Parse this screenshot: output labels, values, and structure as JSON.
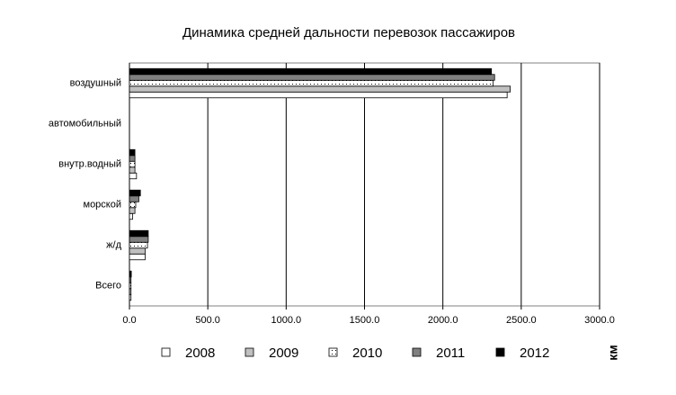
{
  "chart_data": {
    "type": "bar",
    "orientation": "horizontal",
    "title": "Динамика средней дальности перевозок пассажиров",
    "x_label": "км",
    "categories": [
      "воздушный",
      "автомобильный",
      "внутр.водный",
      "морской",
      "ж/д",
      "Всего"
    ],
    "series": [
      {
        "name": "2008",
        "color": "#ffffff",
        "values": [
          2410,
          0,
          45,
          20,
          100,
          10
        ]
      },
      {
        "name": "2009",
        "color": "#c0c0c0",
        "values": [
          2430,
          0,
          35,
          35,
          100,
          10
        ]
      },
      {
        "name": "2010",
        "color": "#ffffff",
        "pattern": "dots",
        "values": [
          2320,
          0,
          35,
          40,
          115,
          10
        ]
      },
      {
        "name": "2011",
        "color": "#808080",
        "values": [
          2330,
          0,
          35,
          60,
          120,
          10
        ]
      },
      {
        "name": "2012",
        "color": "#000000",
        "values": [
          2310,
          0,
          35,
          70,
          120,
          12
        ]
      }
    ],
    "xlim": [
      0,
      3000
    ],
    "xticks": [
      {
        "value": 0,
        "label": "0.0"
      },
      {
        "value": 500,
        "label": "500.0"
      },
      {
        "value": 1000,
        "label": "1000.0"
      },
      {
        "value": 1500,
        "label": "1500.0"
      },
      {
        "value": 2000,
        "label": "2000.0"
      },
      {
        "value": 2500,
        "label": "2500.0"
      },
      {
        "value": 3000,
        "label": "3000.0"
      }
    ],
    "grid": true,
    "legend": "bottom"
  }
}
